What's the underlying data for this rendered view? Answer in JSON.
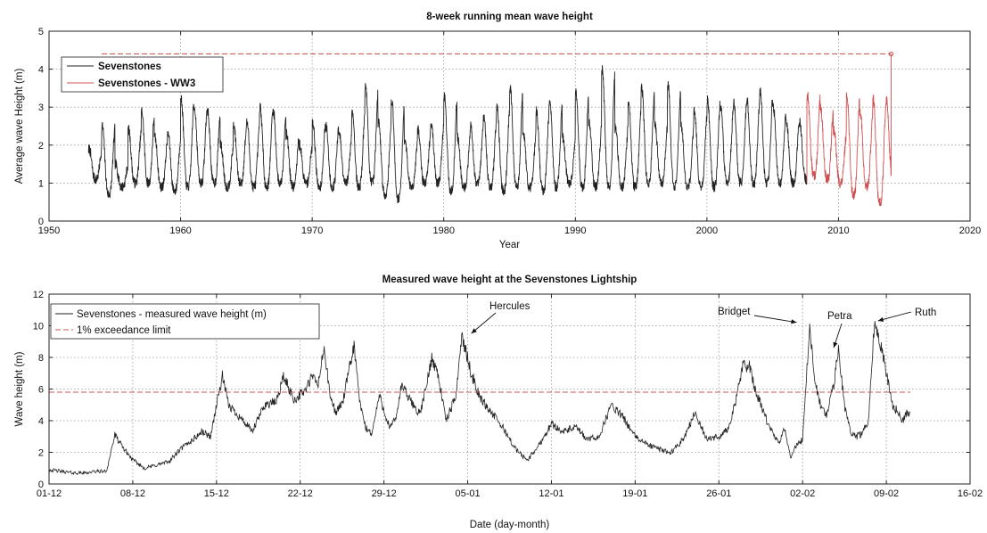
{
  "chart_data": [
    {
      "type": "line",
      "title": "8-week running mean wave height",
      "xlabel": "Year",
      "ylabel": "Average wave Height (m)",
      "xlim": [
        1950,
        2020
      ],
      "ylim": [
        0,
        5
      ],
      "x_ticks": [
        "1950",
        "1960",
        "1970",
        "1980",
        "1990",
        "2000",
        "2010",
        "2020"
      ],
      "y_ticks": [
        "0",
        "1",
        "2",
        "3",
        "4",
        "5"
      ],
      "grid": true,
      "legend": "top-left",
      "series": [
        {
          "name": "Sevenstones",
          "color": "#222222",
          "style": "solid",
          "x_start": 1953.0,
          "x_end": 2007.6,
          "seasonal_peaks": [
            1.9,
            2.5,
            1.5,
            2.4,
            2.9,
            2.2,
            2.3,
            3.2,
            3.0,
            2.9,
            2.0,
            2.5,
            2.6,
            3.0,
            2.9,
            2.3,
            2.0,
            2.6,
            2.5,
            2.3,
            2.9,
            3.6,
            2.6,
            3.2,
            2.1,
            2.4,
            2.6,
            3.3,
            2.2,
            2.5,
            2.7,
            3.0,
            3.5,
            2.3,
            2.9,
            3.2,
            2.2,
            3.4,
            2.6,
            4.0,
            2.5,
            3.1,
            3.5,
            2.6,
            3.6,
            2.5,
            2.9,
            3.2,
            3.0,
            3.1,
            3.2,
            3.4,
            3.0,
            2.6,
            2.6,
            3.5
          ],
          "seasonal_troughs": [
            1.1,
            0.7,
            0.9,
            1.0,
            1.0,
            0.9,
            0.8,
            0.9,
            1.0,
            1.0,
            0.9,
            1.0,
            0.9,
            0.9,
            1.0,
            0.9,
            1.0,
            0.9,
            0.9,
            1.0,
            0.9,
            1.0,
            0.7,
            0.6,
            0.9,
            1.0,
            1.0,
            0.8,
            0.9,
            1.0,
            0.9,
            0.8,
            0.9,
            0.9,
            0.8,
            0.9,
            1.0,
            0.9,
            0.9,
            0.9,
            0.9,
            0.9,
            1.0,
            1.0,
            0.9,
            0.9,
            0.9,
            0.9,
            1.0,
            1.0,
            1.0,
            1.0,
            1.0,
            1.0,
            1.1,
            1.1
          ]
        },
        {
          "name": "Sevenstones - WW3",
          "color": "#d05050",
          "style": "solid",
          "x_start": 2007.6,
          "x_end": 2014.0,
          "seasonal_peaks": [
            3.3,
            3.0,
            2.4,
            3.3,
            2.9,
            3.2,
            3.2
          ],
          "seasonal_troughs": [
            1.2,
            1.1,
            1.0,
            0.7,
            0.9,
            0.5,
            1.1
          ],
          "final_spike": 4.4
        },
        {
          "name": "",
          "color": "#d05050",
          "style": "dashed",
          "x": [
            1954.0,
            2014.0
          ],
          "y": [
            4.4,
            4.4
          ]
        }
      ]
    },
    {
      "type": "line",
      "title": "Measured wave height at the Sevenstones Lightship",
      "xlabel": "Date (day-month)",
      "ylabel": "Wave height (m)",
      "x_ticks": [
        "01-12",
        "08-12",
        "15-12",
        "22-12",
        "29-12",
        "05-01",
        "12-01",
        "19-01",
        "26-01",
        "02-02",
        "09-02",
        "16-02"
      ],
      "x_tick_days": [
        0,
        7,
        14,
        21,
        28,
        35,
        42,
        49,
        56,
        63,
        70,
        77
      ],
      "xlim": [
        0,
        77
      ],
      "ylim": [
        0,
        12
      ],
      "y_ticks": [
        "0",
        "2",
        "4",
        "6",
        "8",
        "10",
        "12"
      ],
      "grid": true,
      "legend": "top-left",
      "series": [
        {
          "name": "Sevenstones - measured wave height (m)",
          "color": "#222222",
          "style": "solid",
          "x": [
            0,
            1,
            2,
            3,
            4,
            4.8,
            5.5,
            6,
            7,
            8,
            9,
            10,
            11,
            12,
            12.8,
            13.5,
            14,
            14.5,
            15,
            16,
            17,
            18,
            19,
            19.6,
            20.5,
            21.5,
            22,
            22.5,
            23,
            23.5,
            24,
            24.6,
            25.5,
            26,
            26.5,
            27,
            27.6,
            28.5,
            29,
            29.5,
            30,
            31,
            31.5,
            32,
            32.5,
            33.2,
            34,
            34.5,
            35.3,
            36,
            37,
            38,
            39,
            40,
            41,
            42,
            43,
            44,
            45,
            46,
            47,
            48,
            49,
            50,
            51,
            52,
            53,
            54,
            55,
            56,
            56.8,
            57.5,
            58,
            58.6,
            59,
            60,
            61,
            61.5,
            62,
            62.5,
            63,
            63.6,
            64,
            64.5,
            65,
            65.6,
            66,
            66.5,
            67,
            67.5,
            68,
            68.5,
            69,
            69.3,
            69.8,
            70.5,
            71,
            71.3,
            71.7,
            72
          ],
          "y": [
            0.9,
            0.8,
            0.7,
            0.7,
            0.8,
            0.8,
            3.1,
            2.5,
            1.5,
            1.0,
            1.2,
            1.4,
            2.2,
            2.8,
            3.3,
            3.0,
            5.0,
            6.8,
            5.0,
            4.2,
            3.3,
            5.0,
            5.2,
            6.8,
            5.3,
            6.0,
            6.8,
            6.3,
            8.6,
            5.5,
            4.5,
            5.3,
            8.8,
            5.0,
            3.5,
            3.2,
            5.6,
            3.5,
            4.2,
            6.3,
            5.5,
            4.4,
            6.0,
            8.0,
            7.0,
            4.0,
            5.5,
            9.4,
            7.0,
            5.5,
            4.5,
            3.5,
            2.2,
            1.5,
            2.5,
            3.8,
            3.3,
            3.6,
            2.8,
            3.0,
            5.0,
            4.2,
            3.0,
            2.5,
            2.2,
            2.0,
            2.8,
            4.5,
            2.8,
            3.0,
            3.5,
            5.5,
            7.5,
            7.4,
            6.0,
            4.0,
            2.5,
            3.5,
            1.7,
            2.5,
            2.8,
            10.1,
            6.5,
            5.0,
            4.3,
            6.2,
            8.5,
            5.0,
            3.3,
            3.0,
            3.2,
            4.0,
            10.2,
            9.5,
            8.0,
            5.0,
            4.5,
            3.9,
            4.5,
            4.5
          ]
        },
        {
          "name": "1% exceedance limit",
          "color": "#d05050",
          "style": "dashed",
          "x": [
            0,
            72
          ],
          "y": [
            5.8,
            5.8
          ]
        }
      ],
      "annotations": [
        {
          "text": "Hercules",
          "x": 35.3,
          "y": 9.4
        },
        {
          "text": "Bridget",
          "x": 62.5,
          "y": 10.1
        },
        {
          "text": "Petra",
          "x": 65.6,
          "y": 8.5
        },
        {
          "text": "Ruth",
          "x": 69.3,
          "y": 10.2
        }
      ]
    }
  ]
}
